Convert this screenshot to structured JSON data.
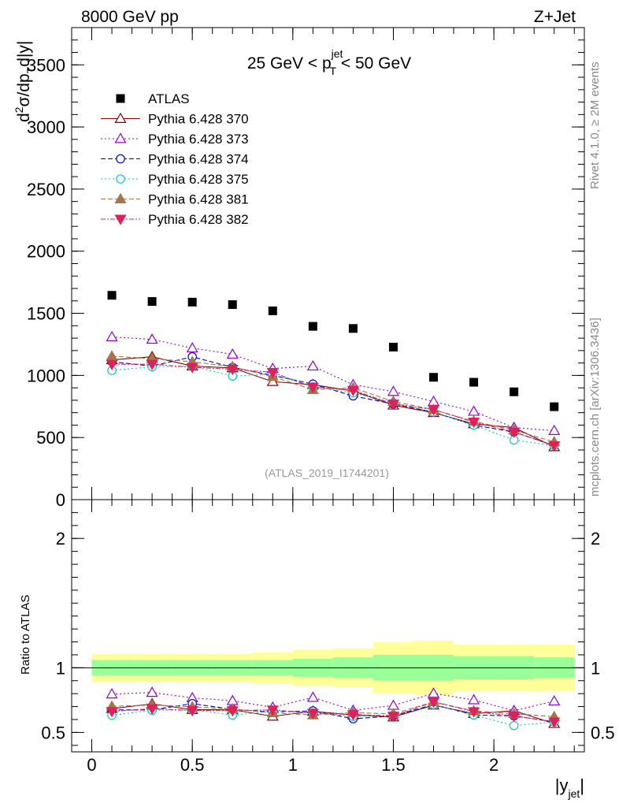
{
  "header": {
    "left": "8000 GeV pp",
    "right": "Z+Jet",
    "side_rivet": "Rivet 4.1.0, ≥ 2M events",
    "side_mcplots": "mcplots.cern.ch [arXiv:1306.3436]",
    "watermark": "(ATLAS_2019_I1744201)"
  },
  "chart_data": {
    "type": "scatter",
    "title": {
      "pre": "25 GeV < p",
      "sub": "T",
      "sup": "jet",
      "post": " < 50 GeV"
    },
    "ylabel": {
      "d": "d",
      "two": "2",
      "sigma": "σ/dp",
      "T": "T",
      "rest": "d|y|"
    },
    "ratio_ylabel": "Ratio to ATLAS",
    "xlabel": {
      "main": "|y",
      "sub": "jet",
      "close": "|"
    },
    "xlim": [
      -0.1,
      2.45
    ],
    "ylim_main": [
      0,
      3800
    ],
    "ylim_ratio": [
      0.35,
      2.3
    ],
    "x_ticks": [
      {
        "v": 0,
        "label": "0"
      },
      {
        "v": 0.5,
        "label": "0.5"
      },
      {
        "v": 1,
        "label": "1"
      },
      {
        "v": 1.5,
        "label": "1.5"
      },
      {
        "v": 2,
        "label": "2"
      }
    ],
    "y_ticks_main": [
      {
        "v": 0,
        "label": "0"
      },
      {
        "v": 500,
        "label": "500"
      },
      {
        "v": 1000,
        "label": "1000"
      },
      {
        "v": 1500,
        "label": "1500"
      },
      {
        "v": 2000,
        "label": "2000"
      },
      {
        "v": 2500,
        "label": "2500"
      },
      {
        "v": 3000,
        "label": "3000"
      },
      {
        "v": 3500,
        "label": "3500"
      }
    ],
    "y_ticks_ratio": [
      {
        "v": 0.5,
        "label": "0.5"
      },
      {
        "v": 1,
        "label": "1"
      },
      {
        "v": 2,
        "label": "2"
      }
    ],
    "x": [
      0.1,
      0.3,
      0.5,
      0.7,
      0.9,
      1.1,
      1.3,
      1.5,
      1.7,
      1.9,
      2.1,
      2.3
    ],
    "bin_edges": [
      0.0,
      0.2,
      0.4,
      0.6,
      0.8,
      1.0,
      1.2,
      1.4,
      1.6,
      1.8,
      2.0,
      2.2,
      2.4
    ],
    "band_inner": [
      [
        0.94,
        1.06
      ],
      [
        0.94,
        1.06
      ],
      [
        0.94,
        1.06
      ],
      [
        0.94,
        1.06
      ],
      [
        0.94,
        1.06
      ],
      [
        0.93,
        1.07
      ],
      [
        0.92,
        1.08
      ],
      [
        0.9,
        1.1
      ],
      [
        0.9,
        1.1
      ],
      [
        0.91,
        1.09
      ],
      [
        0.91,
        1.09
      ],
      [
        0.92,
        1.08
      ]
    ],
    "band_outer": [
      [
        0.89,
        1.11
      ],
      [
        0.89,
        1.11
      ],
      [
        0.89,
        1.11
      ],
      [
        0.89,
        1.11
      ],
      [
        0.88,
        1.12
      ],
      [
        0.86,
        1.14
      ],
      [
        0.85,
        1.15
      ],
      [
        0.8,
        1.2
      ],
      [
        0.79,
        1.21
      ],
      [
        0.82,
        1.18
      ],
      [
        0.82,
        1.18
      ],
      [
        0.82,
        1.18
      ]
    ],
    "data": {
      "name": "ATLAS",
      "color": "#000000",
      "values": [
        1645,
        1595,
        1590,
        1570,
        1520,
        1395,
        1378,
        1228,
        985,
        945,
        868,
        748
      ]
    },
    "series": [
      {
        "name": "Pythia 6.428 370",
        "color": "#8b0000",
        "dash": "",
        "marker": "tri-up-open",
        "values": [
          1125,
          1150,
          1075,
          1060,
          950,
          925,
          875,
          760,
          700,
          610,
          580,
          425
        ]
      },
      {
        "name": "Pythia 6.428 373",
        "color": "#9400d3",
        "dash": "2,3",
        "marker": "tri-up-open",
        "values": [
          1310,
          1290,
          1220,
          1170,
          1055,
          1075,
          925,
          870,
          790,
          710,
          580,
          555
        ]
      },
      {
        "name": "Pythia 6.428 374",
        "color": "#0000dd",
        "dash": "6,3",
        "marker": "circle-open",
        "values": [
          1110,
          1075,
          1150,
          1065,
          1000,
          930,
          835,
          770,
          705,
          600,
          545,
          435
        ]
      },
      {
        "name": "Pythia 6.428 375",
        "color": "#00cec6",
        "dash": "2,3",
        "marker": "circle-open",
        "values": [
          1040,
          1070,
          1075,
          995,
          1010,
          910,
          860,
          780,
          705,
          600,
          480,
          435
        ]
      },
      {
        "name": "Pythia 6.428 381",
        "color": "#a8744a",
        "dash": "6,3",
        "marker": "tri-up-filled",
        "values": [
          1155,
          1135,
          1110,
          1070,
          990,
          885,
          900,
          790,
          725,
          630,
          560,
          465
        ]
      },
      {
        "name": "Pythia 6.428 382",
        "color": "#e0205a",
        "dash": "6,2,2,2",
        "marker": "tri-down-filled",
        "values": [
          1090,
          1090,
          1065,
          1050,
          1025,
          905,
          880,
          770,
          725,
          625,
          545,
          435
        ]
      }
    ]
  }
}
